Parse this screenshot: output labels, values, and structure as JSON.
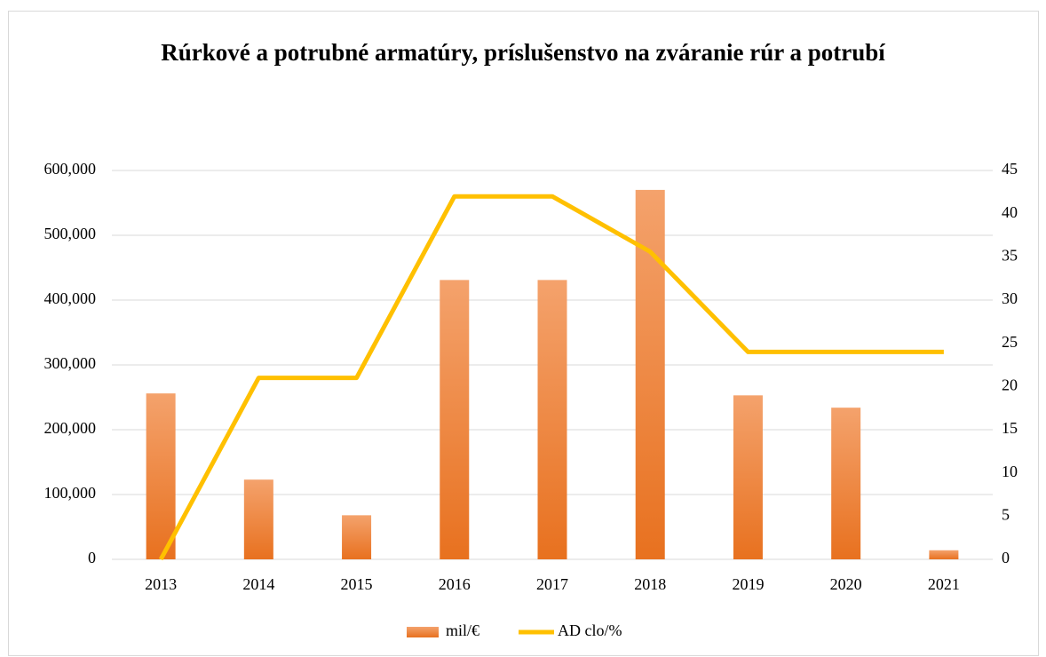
{
  "chart_data": {
    "type": "bar",
    "title": "Rúrkové a potrubné armatúry, príslušenstvo na zváranie rúr a potrubí",
    "categories": [
      "2013",
      "2014",
      "2015",
      "2016",
      "2017",
      "2018",
      "2019",
      "2020",
      "2021"
    ],
    "series": [
      {
        "name": "mil/€",
        "type": "bar",
        "color": "#ed7d31",
        "values": [
          256000,
          123000,
          68000,
          431000,
          431000,
          570000,
          253000,
          234000,
          14000
        ]
      },
      {
        "name": "AD clo/%",
        "type": "line",
        "color": "#ffc000",
        "axis": "y2",
        "values": [
          0,
          21,
          21,
          42,
          42,
          35.6,
          24,
          24,
          24
        ]
      }
    ],
    "ylim": [
      0,
      600000
    ],
    "yticks": [
      0,
      {
        "value": 100000,
        "label": "100,000"
      },
      {
        "value": 200000,
        "label": "200,000"
      },
      {
        "value": 300000,
        "label": "300,000"
      },
      {
        "value": 400000,
        "label": "400,000"
      },
      {
        "value": 500000,
        "label": "500,000"
      },
      {
        "value": 600000,
        "label": "600,000"
      }
    ],
    "y2lim": [
      0,
      45
    ],
    "y2ticks": [
      0,
      5,
      10,
      15,
      20,
      25,
      30,
      35,
      40,
      45
    ],
    "grid": true,
    "legend": "bottom"
  }
}
